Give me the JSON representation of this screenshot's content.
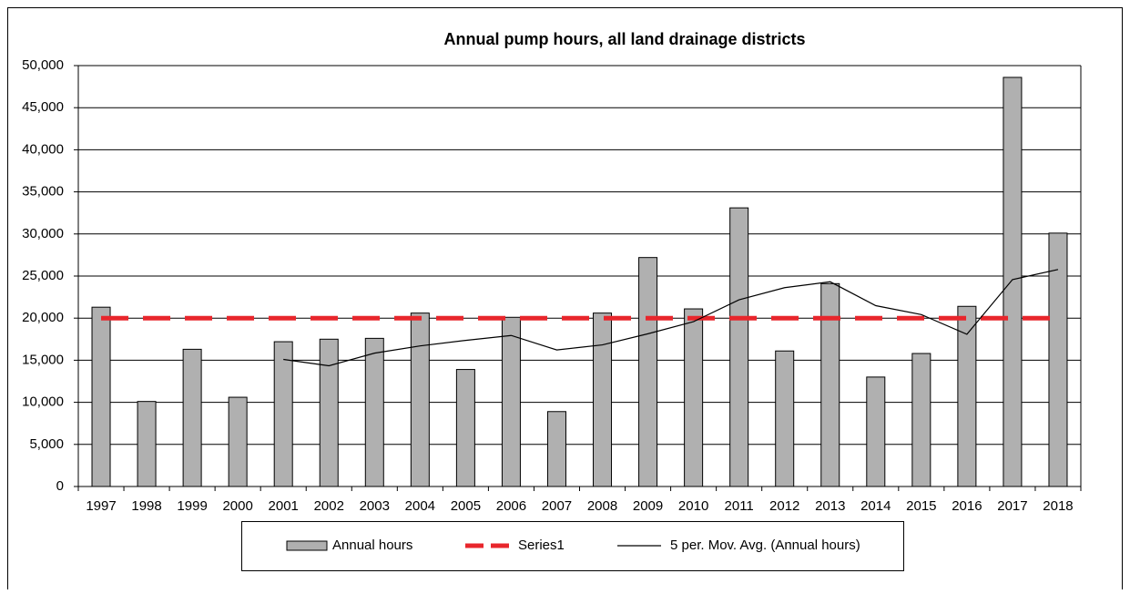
{
  "chart_data": {
    "type": "bar",
    "title": "Annual pump hours, all land drainage districts",
    "categories": [
      "1997",
      "1998",
      "1999",
      "2000",
      "2001",
      "2002",
      "2003",
      "2004",
      "2005",
      "2006",
      "2007",
      "2008",
      "2009",
      "2010",
      "2011",
      "2012",
      "2013",
      "2014",
      "2015",
      "2016",
      "2017",
      "2018"
    ],
    "series": [
      {
        "name": "Annual hours",
        "color": "#b0b0b0",
        "type": "bar",
        "values": [
          21300,
          10100,
          16300,
          10600,
          17200,
          17500,
          17600,
          20600,
          13900,
          20100,
          8900,
          20600,
          27200,
          21100,
          33100,
          16100,
          24100,
          13000,
          15800,
          21400,
          48600,
          30100
        ]
      },
      {
        "name": "Series1",
        "color": "#e8262c",
        "type": "dashed-line",
        "values": [
          20000,
          20000,
          20000,
          20000,
          20000,
          20000,
          20000,
          20000,
          20000,
          20000,
          20000,
          20000,
          20000,
          20000,
          20000,
          20000,
          20000,
          20000,
          20000,
          20000,
          20000,
          20000
        ]
      },
      {
        "name": "5 per. Mov. Avg. (Annual hours)",
        "color": "#000000",
        "type": "line",
        "values": [
          null,
          null,
          null,
          null,
          15100,
          14340,
          15840,
          16700,
          17360,
          17940,
          16220,
          16820,
          18140,
          19580,
          22180,
          23620,
          24320,
          21480,
          20420,
          18080,
          24580,
          25780
        ]
      }
    ],
    "ylim": [
      0,
      50000
    ],
    "yticks": [
      0,
      {
        "value": 5000,
        "label": "5,000"
      },
      {
        "value": 10000,
        "label": "10,000"
      },
      {
        "value": 15000,
        "label": "15,000"
      },
      {
        "value": 20000,
        "label": "20,000"
      },
      {
        "value": 25000,
        "label": "25,000"
      },
      {
        "value": 30000,
        "label": "30,000"
      },
      {
        "value": 35000,
        "label": "35,000"
      },
      {
        "value": 40000,
        "label": "40,000"
      },
      {
        "value": 45000,
        "label": "45,000"
      },
      {
        "value": 50000,
        "label": "50,000"
      }
    ],
    "grid": true,
    "legend": "bottom"
  }
}
